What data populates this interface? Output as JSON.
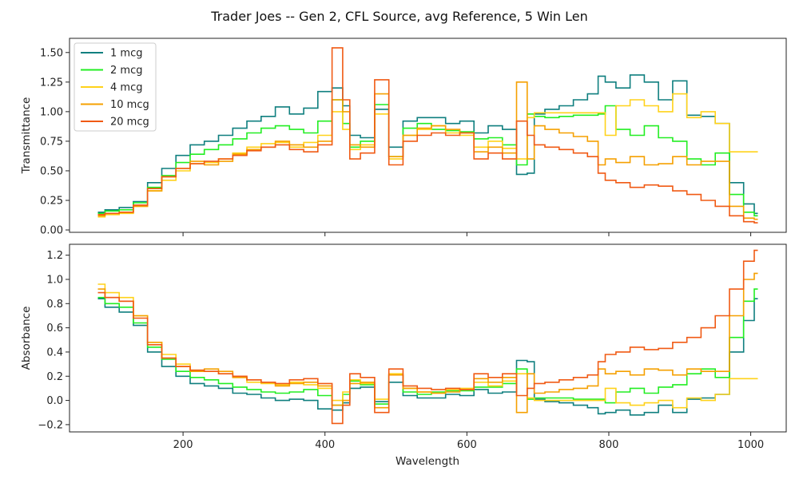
{
  "figure": {
    "title": "Trader Joes -- Gen 2, CFL Source, avg Reference, 5 Win Len",
    "xlabel": "Wavelength"
  },
  "chart_data": [
    {
      "type": "line",
      "step": true,
      "ylabel": "Transmittance",
      "xlim": [
        40,
        1050
      ],
      "ylim": [
        -0.02,
        1.62
      ],
      "xticks": [
        200,
        400,
        600,
        800,
        1000
      ],
      "yticks": [
        0.0,
        0.25,
        0.5,
        0.75,
        1.0,
        1.25,
        1.5
      ],
      "ytick_labels": [
        "0.00",
        "0.25",
        "0.50",
        "0.75",
        "1.00",
        "1.25",
        "1.50"
      ],
      "show_xtick_labels": false,
      "legend": {
        "placement": "top-left",
        "entries": [
          "1 mcg",
          "2 mcg",
          "4 mcg",
          "10 mcg",
          "20 mcg"
        ]
      },
      "x": [
        80,
        100,
        120,
        140,
        160,
        180,
        200,
        220,
        240,
        260,
        280,
        300,
        320,
        340,
        360,
        380,
        400,
        420,
        430,
        440,
        460,
        480,
        500,
        520,
        540,
        560,
        580,
        600,
        620,
        640,
        660,
        680,
        690,
        700,
        720,
        740,
        760,
        780,
        790,
        800,
        820,
        840,
        860,
        880,
        900,
        920,
        940,
        960,
        980,
        1000,
        1010
      ],
      "series": [
        {
          "name": "1 mcg",
          "color": "#0f7f7f",
          "values": [
            0.15,
            0.17,
            0.19,
            0.24,
            0.4,
            0.52,
            0.63,
            0.72,
            0.75,
            0.8,
            0.86,
            0.92,
            0.96,
            1.04,
            0.98,
            1.03,
            1.17,
            1.2,
            1.05,
            0.8,
            0.78,
            1.02,
            0.7,
            0.92,
            0.95,
            0.95,
            0.9,
            0.92,
            0.82,
            0.88,
            0.85,
            0.47,
            0.48,
            0.98,
            1.02,
            1.05,
            1.1,
            1.15,
            1.3,
            1.25,
            1.2,
            1.31,
            1.25,
            1.1,
            1.26,
            0.97,
            0.96,
            0.9,
            0.4,
            0.22,
            0.14
          ]
        },
        {
          "name": "2 mcg",
          "color": "#22ee22",
          "values": [
            0.14,
            0.16,
            0.17,
            0.23,
            0.36,
            0.46,
            0.57,
            0.64,
            0.68,
            0.72,
            0.77,
            0.82,
            0.86,
            0.88,
            0.85,
            0.82,
            0.92,
            1.1,
            0.9,
            0.7,
            0.75,
            1.06,
            0.62,
            0.86,
            0.9,
            0.85,
            0.84,
            0.83,
            0.77,
            0.78,
            0.72,
            0.55,
            0.98,
            0.96,
            0.95,
            0.96,
            0.97,
            0.97,
            0.98,
            1.05,
            0.85,
            0.8,
            0.88,
            0.78,
            0.75,
            0.6,
            0.55,
            0.65,
            0.3,
            0.15,
            0.12
          ]
        },
        {
          "name": "4 mcg",
          "color": "#ffd21a",
          "values": [
            0.11,
            0.13,
            0.14,
            0.2,
            0.33,
            0.42,
            0.5,
            0.56,
            0.57,
            0.6,
            0.65,
            0.7,
            0.73,
            0.74,
            0.7,
            0.74,
            0.8,
            1.0,
            0.85,
            0.68,
            0.72,
            0.98,
            0.6,
            0.8,
            0.85,
            0.88,
            0.82,
            0.8,
            0.7,
            0.75,
            0.69,
            0.6,
            0.95,
            0.99,
            0.99,
            0.99,
            0.99,
            0.99,
            0.99,
            0.8,
            1.05,
            1.1,
            1.05,
            1.0,
            1.15,
            0.95,
            1.0,
            0.9,
            0.66,
            0.66,
            0.66
          ]
        },
        {
          "name": "10 mcg",
          "color": "#f5a000",
          "values": [
            0.12,
            0.14,
            0.15,
            0.2,
            0.33,
            0.45,
            0.52,
            0.58,
            0.55,
            0.58,
            0.64,
            0.68,
            0.7,
            0.75,
            0.72,
            0.7,
            0.75,
            1.1,
            1.0,
            0.72,
            0.7,
            1.15,
            0.62,
            0.8,
            0.86,
            0.88,
            0.85,
            0.82,
            0.66,
            0.7,
            0.65,
            1.25,
            0.6,
            0.88,
            0.85,
            0.82,
            0.79,
            0.75,
            0.55,
            0.6,
            0.57,
            0.62,
            0.55,
            0.56,
            0.62,
            0.55,
            0.58,
            0.58,
            0.2,
            0.1,
            0.09
          ]
        },
        {
          "name": "20 mcg",
          "color": "#f05a14",
          "values": [
            0.13,
            0.14,
            0.15,
            0.21,
            0.35,
            0.45,
            0.52,
            0.56,
            0.58,
            0.6,
            0.63,
            0.67,
            0.7,
            0.72,
            0.68,
            0.66,
            0.72,
            1.54,
            1.1,
            0.6,
            0.65,
            1.27,
            0.55,
            0.75,
            0.8,
            0.82,
            0.8,
            0.82,
            0.6,
            0.65,
            0.6,
            0.92,
            0.8,
            0.72,
            0.7,
            0.68,
            0.65,
            0.62,
            0.48,
            0.42,
            0.4,
            0.36,
            0.38,
            0.37,
            0.33,
            0.3,
            0.25,
            0.2,
            0.12,
            0.07,
            0.06
          ]
        }
      ]
    },
    {
      "type": "line",
      "step": true,
      "ylabel": "Absorbance",
      "xlim": [
        40,
        1050
      ],
      "ylim": [
        -0.26,
        1.29
      ],
      "xticks": [
        200,
        400,
        600,
        800,
        1000
      ],
      "xtick_labels": [
        "200",
        "400",
        "600",
        "800",
        "1000"
      ],
      "yticks": [
        -0.2,
        0.0,
        0.2,
        0.4,
        0.6,
        0.8,
        1.0,
        1.2
      ],
      "ytick_labels": [
        "−0.2",
        "0.0",
        "0.2",
        "0.4",
        "0.6",
        "0.8",
        "1.0",
        "1.2"
      ],
      "show_xtick_labels": true,
      "x": [
        80,
        100,
        120,
        140,
        160,
        180,
        200,
        220,
        240,
        260,
        280,
        300,
        320,
        340,
        360,
        380,
        400,
        420,
        430,
        440,
        460,
        480,
        500,
        520,
        540,
        560,
        580,
        600,
        620,
        640,
        660,
        680,
        690,
        700,
        720,
        740,
        760,
        780,
        790,
        800,
        820,
        840,
        860,
        880,
        900,
        920,
        940,
        960,
        980,
        1000,
        1010
      ],
      "series": [
        {
          "name": "1 mcg",
          "color": "#0f7f7f",
          "values": [
            0.84,
            0.77,
            0.73,
            0.62,
            0.4,
            0.28,
            0.2,
            0.14,
            0.12,
            0.1,
            0.06,
            0.05,
            0.02,
            0.0,
            0.01,
            0.0,
            -0.07,
            -0.08,
            -0.02,
            0.1,
            0.11,
            -0.01,
            0.15,
            0.04,
            0.02,
            0.02,
            0.05,
            0.04,
            0.09,
            0.06,
            0.07,
            0.33,
            0.32,
            0.01,
            -0.01,
            -0.02,
            -0.04,
            -0.06,
            -0.11,
            -0.1,
            -0.08,
            -0.12,
            -0.1,
            -0.04,
            -0.1,
            0.01,
            0.02,
            0.05,
            0.4,
            0.66,
            0.84
          ]
        },
        {
          "name": "2 mcg",
          "color": "#22ee22",
          "values": [
            0.85,
            0.8,
            0.77,
            0.64,
            0.44,
            0.34,
            0.24,
            0.19,
            0.17,
            0.14,
            0.11,
            0.09,
            0.07,
            0.06,
            0.07,
            0.09,
            0.04,
            -0.04,
            0.05,
            0.16,
            0.13,
            -0.03,
            0.21,
            0.07,
            0.05,
            0.07,
            0.08,
            0.08,
            0.11,
            0.11,
            0.14,
            0.26,
            0.01,
            0.02,
            0.02,
            0.02,
            0.01,
            0.01,
            0.01,
            -0.02,
            0.07,
            0.1,
            0.06,
            0.11,
            0.13,
            0.22,
            0.26,
            0.19,
            0.52,
            0.82,
            0.92
          ]
        },
        {
          "name": "4 mcg",
          "color": "#ffd21a",
          "values": [
            0.96,
            0.89,
            0.85,
            0.7,
            0.48,
            0.38,
            0.3,
            0.25,
            0.24,
            0.22,
            0.19,
            0.15,
            0.14,
            0.13,
            0.15,
            0.13,
            0.1,
            0.0,
            0.07,
            0.17,
            0.14,
            0.01,
            0.22,
            0.1,
            0.07,
            0.06,
            0.09,
            0.1,
            0.15,
            0.12,
            0.16,
            0.22,
            0.02,
            0.0,
            0.0,
            0.0,
            0.0,
            0.0,
            0.0,
            0.1,
            -0.02,
            -0.04,
            -0.02,
            0.0,
            -0.06,
            0.02,
            0.0,
            0.05,
            0.18,
            0.18,
            0.18
          ]
        },
        {
          "name": "10 mcg",
          "color": "#f5a000",
          "values": [
            0.92,
            0.85,
            0.82,
            0.7,
            0.48,
            0.35,
            0.28,
            0.24,
            0.26,
            0.24,
            0.19,
            0.17,
            0.15,
            0.12,
            0.14,
            0.15,
            0.12,
            -0.04,
            0.0,
            0.14,
            0.15,
            -0.06,
            0.21,
            0.1,
            0.07,
            0.06,
            0.07,
            0.09,
            0.18,
            0.15,
            0.19,
            -0.1,
            0.22,
            0.06,
            0.07,
            0.09,
            0.1,
            0.12,
            0.26,
            0.22,
            0.24,
            0.21,
            0.26,
            0.25,
            0.21,
            0.26,
            0.24,
            0.24,
            0.7,
            1.0,
            1.05
          ]
        },
        {
          "name": "20 mcg",
          "color": "#f05a14",
          "values": [
            0.89,
            0.85,
            0.82,
            0.68,
            0.46,
            0.35,
            0.28,
            0.25,
            0.24,
            0.22,
            0.2,
            0.17,
            0.15,
            0.14,
            0.17,
            0.18,
            0.14,
            -0.19,
            -0.04,
            0.22,
            0.19,
            -0.1,
            0.26,
            0.12,
            0.1,
            0.09,
            0.1,
            0.09,
            0.22,
            0.19,
            0.22,
            0.04,
            0.1,
            0.14,
            0.15,
            0.17,
            0.19,
            0.21,
            0.32,
            0.38,
            0.4,
            0.44,
            0.42,
            0.43,
            0.48,
            0.52,
            0.6,
            0.7,
            0.92,
            1.15,
            1.24
          ]
        }
      ]
    }
  ]
}
